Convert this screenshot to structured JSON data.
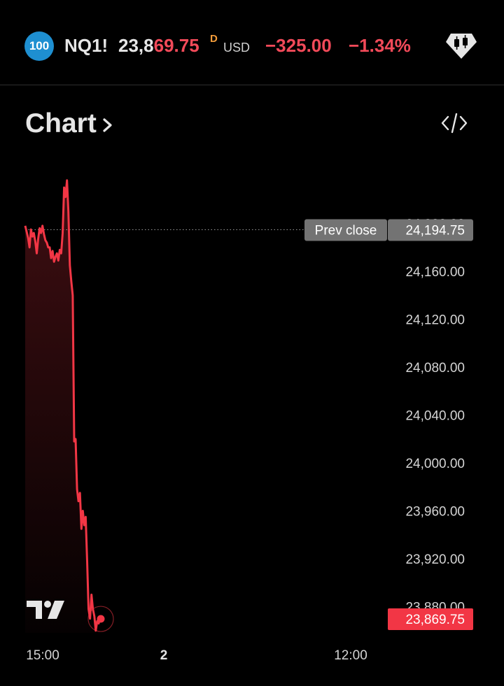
{
  "header": {
    "badge": "100",
    "symbol": "NQ1!",
    "price_part1": "23,8",
    "price_part2": "69.75",
    "price_suffix": "D",
    "currency": "USD",
    "change": "−325.00",
    "change_percent": "−1.34%",
    "icon": "candlestick-gem-icon"
  },
  "section": {
    "title": "Chart",
    "chevron_icon": "chevron-right-icon",
    "embed_icon": "code-embed-icon"
  },
  "colors": {
    "background": "#000000",
    "line": "#f23645",
    "badge": "#1e8fd1",
    "tag_gray": "#707070",
    "tag_red": "#f23645"
  },
  "chart_data": {
    "type": "area",
    "y_ticks": [
      "24,200.00",
      "24,160.00",
      "24,120.00",
      "24,080.00",
      "24,040.00",
      "24,000.00",
      "23,960.00",
      "23,920.00",
      "23,880.00"
    ],
    "x_ticks": [
      "15:00",
      "2",
      "12:00"
    ],
    "ylim": [
      23860,
      24235
    ],
    "prev_close": {
      "label": "Prev close",
      "value": "24,194.75",
      "y": 24194.75
    },
    "last_price": {
      "value": "23,869.75",
      "y": 23869.75
    },
    "series": [
      {
        "values": [
          [
            0,
            24198
          ],
          [
            1,
            24193
          ],
          [
            2,
            24188
          ],
          [
            3,
            24180
          ],
          [
            4,
            24195
          ],
          [
            5,
            24189
          ],
          [
            6,
            24192
          ],
          [
            7,
            24185
          ],
          [
            8,
            24175
          ],
          [
            9,
            24187
          ],
          [
            10,
            24196
          ],
          [
            11,
            24192
          ],
          [
            12,
            24198
          ],
          [
            13,
            24191
          ],
          [
            14,
            24186
          ],
          [
            15,
            24184
          ],
          [
            16,
            24180
          ],
          [
            17,
            24180
          ],
          [
            18,
            24171
          ],
          [
            19,
            24177
          ],
          [
            20,
            24168
          ],
          [
            21,
            24172
          ],
          [
            22,
            24175
          ],
          [
            23,
            24169
          ],
          [
            24,
            24178
          ],
          [
            25,
            24175
          ],
          [
            26,
            24192
          ],
          [
            27,
            24230
          ],
          [
            28,
            24222
          ],
          [
            29,
            24236
          ],
          [
            30,
            24210
          ],
          [
            31,
            24165
          ],
          [
            32,
            24152
          ],
          [
            33,
            24140
          ],
          [
            34,
            24018
          ],
          [
            35,
            24020
          ],
          [
            36,
            23978
          ],
          [
            37,
            23968
          ],
          [
            38,
            23975
          ],
          [
            39,
            23945
          ],
          [
            40,
            23960
          ],
          [
            41,
            23948
          ],
          [
            42,
            23955
          ],
          [
            43,
            23918
          ],
          [
            44,
            23878
          ],
          [
            45,
            23870
          ],
          [
            46,
            23890
          ],
          [
            47,
            23878
          ],
          [
            48,
            23872
          ],
          [
            49,
            23860
          ],
          [
            50,
            23868
          ],
          [
            51,
            23866
          ],
          [
            52,
            23869.75
          ]
        ]
      }
    ]
  }
}
